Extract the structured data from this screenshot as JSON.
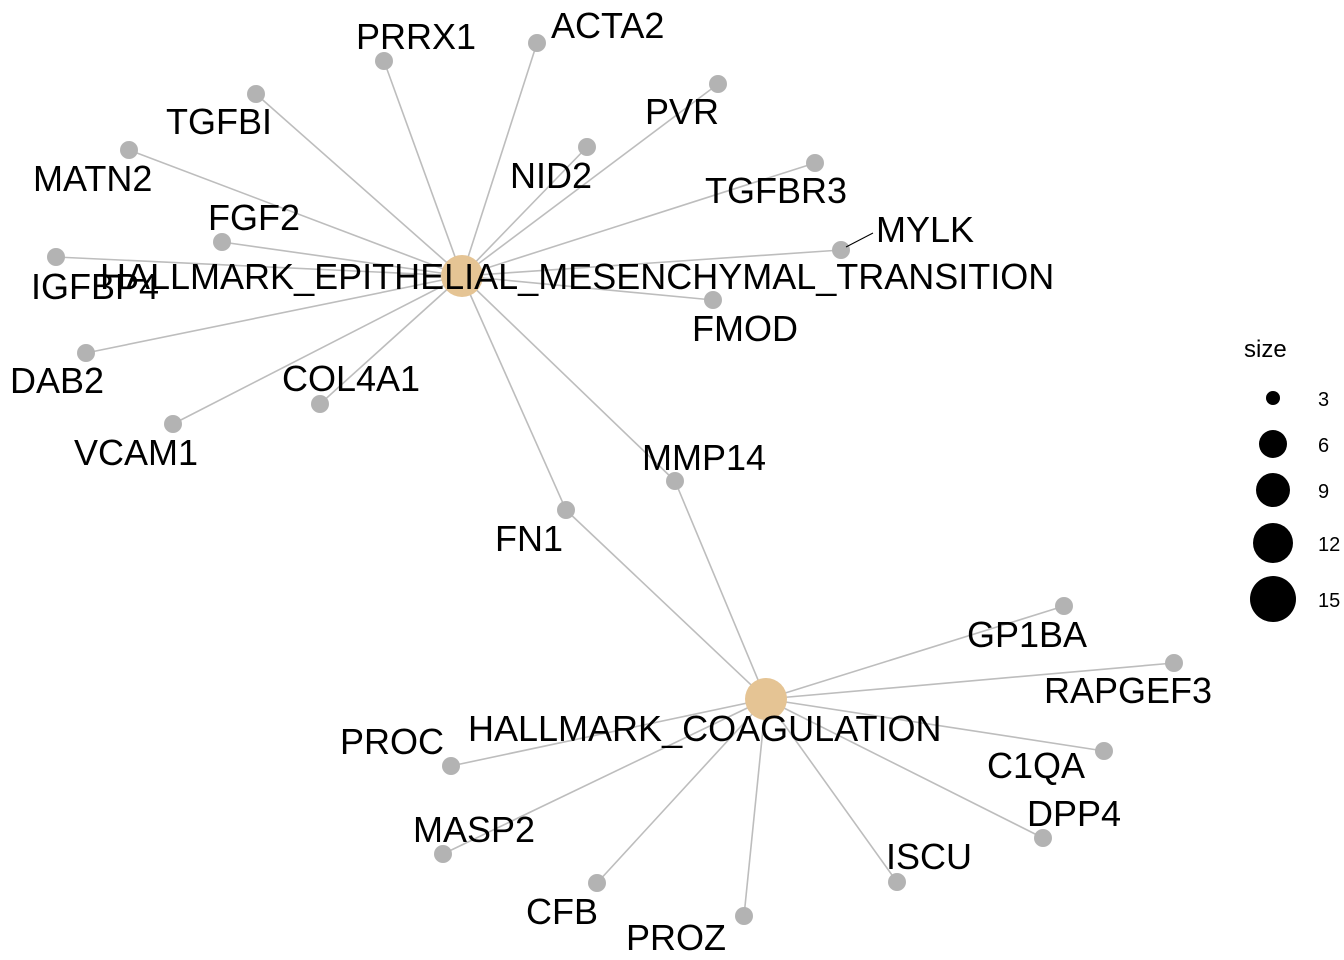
{
  "hubs": [
    {
      "id": "emt",
      "label": "HALLMARK_EPITHELIAL_MESENCHYMAL_TRANSITION"
    },
    {
      "id": "coag",
      "label": "HALLMARK_COAGULATION"
    }
  ],
  "genes": [
    {
      "id": "PRRX1",
      "label": "PRRX1",
      "hubs": [
        "emt"
      ]
    },
    {
      "id": "ACTA2",
      "label": "ACTA2",
      "hubs": [
        "emt"
      ]
    },
    {
      "id": "PVR",
      "label": "PVR",
      "hubs": [
        "emt"
      ]
    },
    {
      "id": "TGFBI",
      "label": "TGFBI",
      "hubs": [
        "emt"
      ]
    },
    {
      "id": "NID2",
      "label": "NID2",
      "hubs": [
        "emt"
      ]
    },
    {
      "id": "MATN2",
      "label": "MATN2",
      "hubs": [
        "emt"
      ]
    },
    {
      "id": "TGFBR3",
      "label": "TGFBR3",
      "hubs": [
        "emt"
      ]
    },
    {
      "id": "FGF2",
      "label": "FGF2",
      "hubs": [
        "emt"
      ]
    },
    {
      "id": "MYLK",
      "label": "MYLK",
      "hubs": [
        "emt"
      ]
    },
    {
      "id": "IGFBP4",
      "label": "IGFBP4",
      "hubs": [
        "emt"
      ]
    },
    {
      "id": "FMOD",
      "label": "FMOD",
      "hubs": [
        "emt"
      ]
    },
    {
      "id": "DAB2",
      "label": "DAB2",
      "hubs": [
        "emt"
      ]
    },
    {
      "id": "COL4A1",
      "label": "COL4A1",
      "hubs": [
        "emt"
      ]
    },
    {
      "id": "VCAM1",
      "label": "VCAM1",
      "hubs": [
        "emt"
      ]
    },
    {
      "id": "MMP14",
      "label": "MMP14",
      "hubs": [
        "emt",
        "coag"
      ]
    },
    {
      "id": "FN1",
      "label": "FN1",
      "hubs": [
        "emt",
        "coag"
      ]
    },
    {
      "id": "GP1BA",
      "label": "GP1BA",
      "hubs": [
        "coag"
      ]
    },
    {
      "id": "RAPGEF3",
      "label": "RAPGEF3",
      "hubs": [
        "coag"
      ]
    },
    {
      "id": "PROC",
      "label": "PROC",
      "hubs": [
        "coag"
      ]
    },
    {
      "id": "C1QA",
      "label": "C1QA",
      "hubs": [
        "coag"
      ]
    },
    {
      "id": "DPP4",
      "label": "DPP4",
      "hubs": [
        "coag"
      ]
    },
    {
      "id": "MASP2",
      "label": "MASP2",
      "hubs": [
        "coag"
      ]
    },
    {
      "id": "ISCU",
      "label": "ISCU",
      "hubs": [
        "coag"
      ]
    },
    {
      "id": "CFB",
      "label": "CFB",
      "hubs": [
        "coag"
      ]
    },
    {
      "id": "PROZ",
      "label": "PROZ",
      "hubs": [
        "coag"
      ]
    }
  ],
  "legend": {
    "title": "size",
    "values": [
      "3",
      "6",
      "9",
      "12",
      "15"
    ]
  },
  "colors": {
    "gene_node": "#b3b3b3",
    "hub_node": "#e5c494",
    "edge": "#bdbdbd"
  }
}
